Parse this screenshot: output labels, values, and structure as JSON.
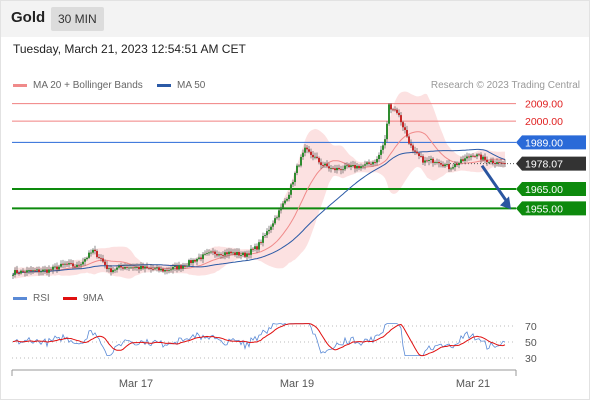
{
  "header": {
    "title": "Gold",
    "timeframe": "30 MIN"
  },
  "datetime": "Tuesday, March 21, 2023 12:54:51 AM CET",
  "legend": {
    "main": [
      {
        "label": "MA 20 + Bollinger Bands",
        "color": "#f08a8a"
      },
      {
        "label": "MA 50",
        "color": "#2b5aa6"
      }
    ],
    "indicator": [
      {
        "label": "RSI",
        "color": "#5a8ad6"
      },
      {
        "label": "9MA",
        "color": "#e01010"
      }
    ],
    "credit": "Research © 2023 Trading Central"
  },
  "chart_data": {
    "type": "candlestick",
    "price_axis_range": [
      1917,
      2015
    ],
    "x_ticks": [
      "Mar 17",
      "Mar 19",
      "Mar 21"
    ],
    "levels": [
      {
        "value": 2009.0,
        "label": "2009.00",
        "kind": "resistance",
        "color": "#f08080"
      },
      {
        "value": 2000.0,
        "label": "2000.00",
        "kind": "resistance",
        "color": "#f08080"
      },
      {
        "value": 1989.0,
        "label": "1989.00",
        "kind": "pivot",
        "color": "#2a6ad8"
      },
      {
        "value": 1978.07,
        "label": "1978.07",
        "kind": "last-price",
        "color": "#333333"
      },
      {
        "value": 1965.0,
        "label": "1965.00",
        "kind": "target",
        "color": "#0d8a0d"
      },
      {
        "value": 1955.0,
        "label": "1955.00",
        "kind": "target",
        "color": "#0d8a0d"
      }
    ],
    "forecast_arrow": {
      "from": 1977,
      "to": 1955,
      "direction": "down",
      "color": "#2a55a0"
    },
    "rsi": {
      "ticks": [
        70,
        50,
        30
      ]
    },
    "path": [
      [
        0,
        1922
      ],
      [
        18,
        1923
      ],
      [
        26,
        1926
      ],
      [
        32,
        1925
      ],
      [
        40,
        1933
      ],
      [
        44,
        1929
      ],
      [
        48,
        1923
      ],
      [
        56,
        1925
      ],
      [
        66,
        1924
      ],
      [
        76,
        1923
      ],
      [
        84,
        1925
      ],
      [
        92,
        1929
      ],
      [
        100,
        1932
      ],
      [
        108,
        1932
      ],
      [
        116,
        1931
      ],
      [
        122,
        1935
      ],
      [
        126,
        1941
      ],
      [
        130,
        1948
      ],
      [
        134,
        1955
      ],
      [
        138,
        1963
      ],
      [
        142,
        1976
      ],
      [
        146,
        1985
      ],
      [
        150,
        1982
      ],
      [
        154,
        1978
      ],
      [
        160,
        1975
      ],
      [
        168,
        1976
      ],
      [
        176,
        1977
      ],
      [
        182,
        1980
      ],
      [
        186,
        1990
      ],
      [
        188,
        2008
      ],
      [
        192,
        2005
      ],
      [
        196,
        1995
      ],
      [
        200,
        1984
      ],
      [
        206,
        1979
      ],
      [
        212,
        1980
      ],
      [
        218,
        1976
      ],
      [
        224,
        1979
      ],
      [
        230,
        1983
      ],
      [
        236,
        1980
      ],
      [
        241,
        1979
      ],
      [
        246,
        1978.07
      ]
    ]
  }
}
